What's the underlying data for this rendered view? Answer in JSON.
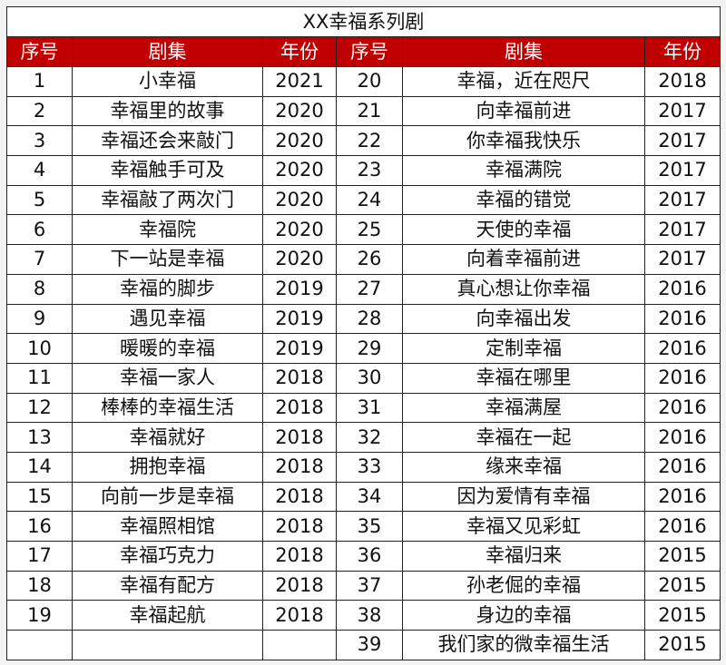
{
  "title": "XX幸福系列剧",
  "headers": [
    "序号",
    "剧集",
    "年份",
    "序号",
    "剧集",
    "年份"
  ],
  "colors": {
    "header_bg": "#c00000",
    "header_text": "#ffffff"
  },
  "rows": [
    [
      1,
      "小幸福",
      2021,
      20,
      "幸福，近在咫尺",
      2018
    ],
    [
      2,
      "幸福里的故事",
      2020,
      21,
      "向幸福前进",
      2017
    ],
    [
      3,
      "幸福还会来敲门",
      2020,
      22,
      "你幸福我快乐",
      2017
    ],
    [
      4,
      "幸福触手可及",
      2020,
      23,
      "幸福满院",
      2017
    ],
    [
      5,
      "幸福敲了两次门",
      2020,
      24,
      "幸福的错觉",
      2017
    ],
    [
      6,
      "幸福院",
      2020,
      25,
      "天使的幸福",
      2017
    ],
    [
      7,
      "下一站是幸福",
      2020,
      26,
      "向着幸福前进",
      2017
    ],
    [
      8,
      "幸福的脚步",
      2019,
      27,
      "真心想让你幸福",
      2016
    ],
    [
      9,
      "遇见幸福",
      2019,
      28,
      "向幸福出发",
      2016
    ],
    [
      10,
      "暖暖的幸福",
      2019,
      29,
      "定制幸福",
      2016
    ],
    [
      11,
      "幸福一家人",
      2018,
      30,
      "幸福在哪里",
      2016
    ],
    [
      12,
      "棒棒的幸福生活",
      2018,
      31,
      "幸福满屋",
      2016
    ],
    [
      13,
      "幸福就好",
      2018,
      32,
      "幸福在一起",
      2016
    ],
    [
      14,
      "拥抱幸福",
      2018,
      33,
      "缘来幸福",
      2016
    ],
    [
      15,
      "向前一步是幸福",
      2018,
      34,
      "因为爱情有幸福",
      2016
    ],
    [
      16,
      "幸福照相馆",
      2018,
      35,
      "幸福又见彩虹",
      2016
    ],
    [
      17,
      "幸福巧克力",
      2018,
      36,
      "幸福归来",
      2015
    ],
    [
      18,
      "幸福有配方",
      2018,
      37,
      "孙老倔的幸福",
      2015
    ],
    [
      19,
      "幸福起航",
      2018,
      38,
      "身边的幸福",
      2015
    ],
    [
      "",
      "",
      "",
      39,
      "我们家的微幸福生活",
      2015
    ]
  ]
}
